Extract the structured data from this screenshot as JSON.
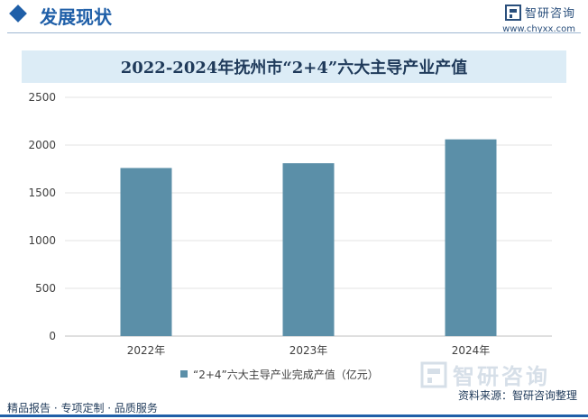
{
  "header": {
    "section_title": "发展现状",
    "brand_name": "智研咨询",
    "site_url": "www.chyxx.com",
    "accent_color": "#1f5fa8"
  },
  "chart_data": {
    "type": "bar",
    "title": "2022-2024年抚州市“2+4”六大主导产业产值",
    "categories": [
      "2022年",
      "2023年",
      "2024年"
    ],
    "series": [
      {
        "name": "“2+4”六大主导产业完成产值（亿元）",
        "values": [
          1760,
          1810,
          2060
        ],
        "color": "#5b8fa8"
      }
    ],
    "yticks": [
      0,
      500,
      1000,
      1500,
      2000,
      2500
    ],
    "ylim": [
      0,
      2500
    ],
    "grid": true,
    "legend_position": "bottom"
  },
  "footer": {
    "left_text": "精品报告 · 专项定制 · 品质服务",
    "source_text": "资料来源：智研咨询整理",
    "watermark_text": "智研咨询"
  }
}
